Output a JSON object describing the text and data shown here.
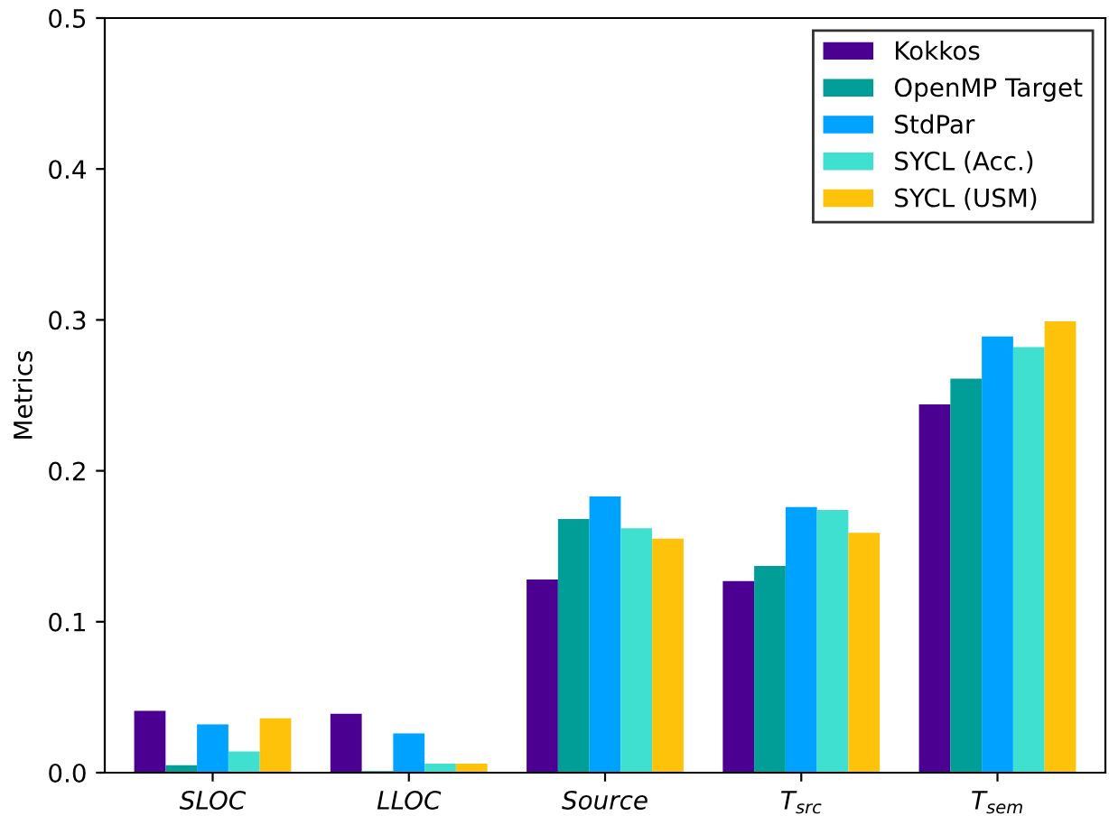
{
  "chart_data": {
    "type": "bar",
    "ylabel": "Metrics",
    "categories": [
      "SLOC",
      "LLOC",
      "Source",
      "T$_{src}$",
      "T$_{sem}$"
    ],
    "ylim": [
      0,
      0.5
    ],
    "yticks": [
      {
        "value": 0,
        "label": "0.0"
      },
      0.1,
      0.2,
      0.3,
      0.4,
      0.5
    ],
    "legend": "top right",
    "grid": false,
    "series": [
      {
        "name": "Kokkos",
        "color": "#4b0092",
        "values": [
          0.041,
          0.039,
          0.128,
          0.127,
          0.244
        ]
      },
      {
        "name": "OpenMP Target",
        "color": "#009e96",
        "values": [
          0.005,
          0.001,
          0.168,
          0.137,
          0.261
        ]
      },
      {
        "name": "StdPar",
        "color": "#00a2ff",
        "values": [
          0.032,
          0.026,
          0.183,
          0.176,
          0.289
        ]
      },
      {
        "name": "SYCL (Acc.)",
        "color": "#40e0d0",
        "values": [
          0.014,
          0.006,
          0.162,
          0.174,
          0.282
        ]
      },
      {
        "name": "SYCL (USM)",
        "color": "#ffc20a",
        "values": [
          0.036,
          0.006,
          0.155,
          0.159,
          0.299
        ]
      }
    ]
  }
}
